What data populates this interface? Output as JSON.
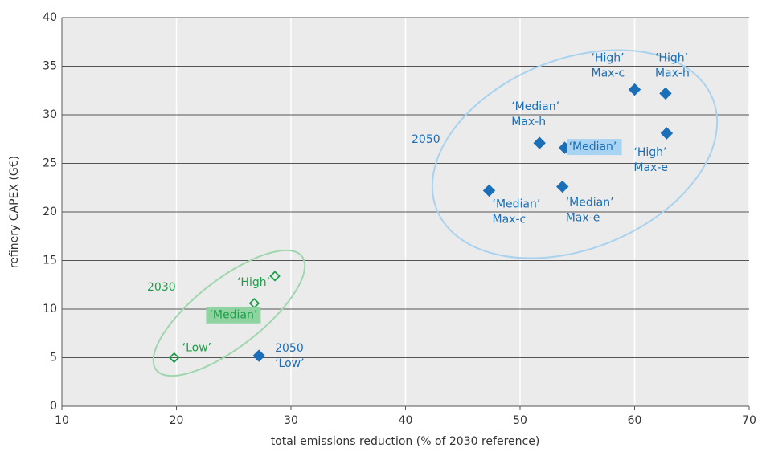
{
  "chart_data": {
    "type": "scatter",
    "x_label": "total emissions reduction (% of 2030 reference)",
    "y_label": "refinery CAPEX (G€)",
    "xlim": [
      10,
      70
    ],
    "xticks": [
      10,
      20,
      30,
      40,
      50,
      60,
      70
    ],
    "ylim": [
      0,
      40
    ],
    "yticks": [
      0,
      5,
      10,
      15,
      20,
      25,
      30,
      35,
      40
    ],
    "grid": true,
    "series": [
      {
        "name": "2030",
        "color": "#1e9e48",
        "marker": "open-diamond",
        "x": [
          19.8,
          26.8,
          28.6
        ],
        "values": [
          5.0,
          10.6,
          13.4
        ],
        "point_labels": [
          [
            "‘Low’"
          ],
          [
            "‘Median’"
          ],
          [
            "‘High’"
          ]
        ]
      },
      {
        "name": "2050",
        "color": "#1a6fb8",
        "marker": "filled-diamond",
        "x": [
          27.2,
          47.3,
          51.7,
          53.9,
          53.7,
          60.0,
          62.7,
          62.8
        ],
        "values": [
          5.2,
          22.2,
          27.1,
          26.6,
          22.6,
          32.6,
          32.2,
          28.1
        ],
        "point_labels": [
          [
            "2050",
            "‘Low’"
          ],
          [
            "‘Median’",
            "Max-c"
          ],
          [
            "‘Median’",
            "Max-h"
          ],
          [
            "‘Median’"
          ],
          [
            "‘Median’",
            "Max-e"
          ],
          [
            "‘High’",
            "Max-c"
          ],
          [
            "‘High’",
            "Max-h"
          ],
          [
            "‘High’",
            "Max-e"
          ]
        ]
      }
    ]
  }
}
